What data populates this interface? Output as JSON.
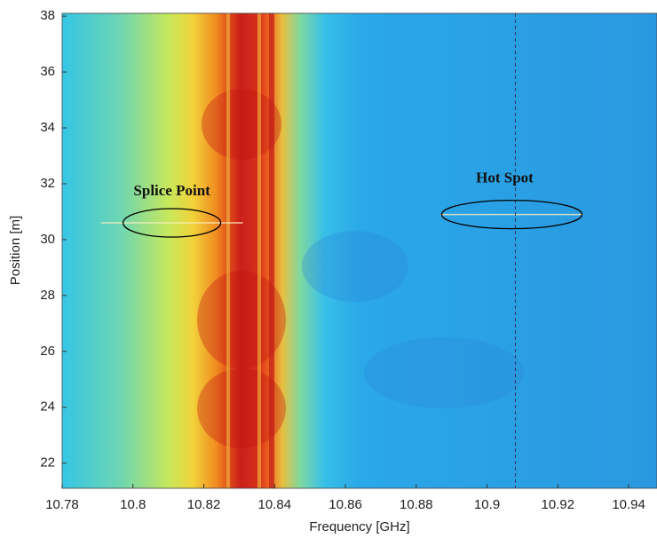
{
  "chart_data": {
    "type": "heatmap",
    "x_label": "Frequency [GHz]",
    "y_label": "Position [m]",
    "xlim": [
      10.78,
      10.948
    ],
    "ylim": [
      21.1,
      38.1
    ],
    "xticks": [
      10.78,
      10.8,
      10.82,
      10.84,
      10.86,
      10.88,
      10.9,
      10.92,
      10.94
    ],
    "yticks": [
      22,
      24,
      26,
      28,
      30,
      32,
      34,
      36,
      38
    ],
    "marker_x": 10.908,
    "annotations": [
      {
        "text": "Splice Point",
        "x": 10.811,
        "y": 30.6
      },
      {
        "text": "Hot Spot",
        "x": 10.907,
        "y": 30.9
      }
    ]
  }
}
